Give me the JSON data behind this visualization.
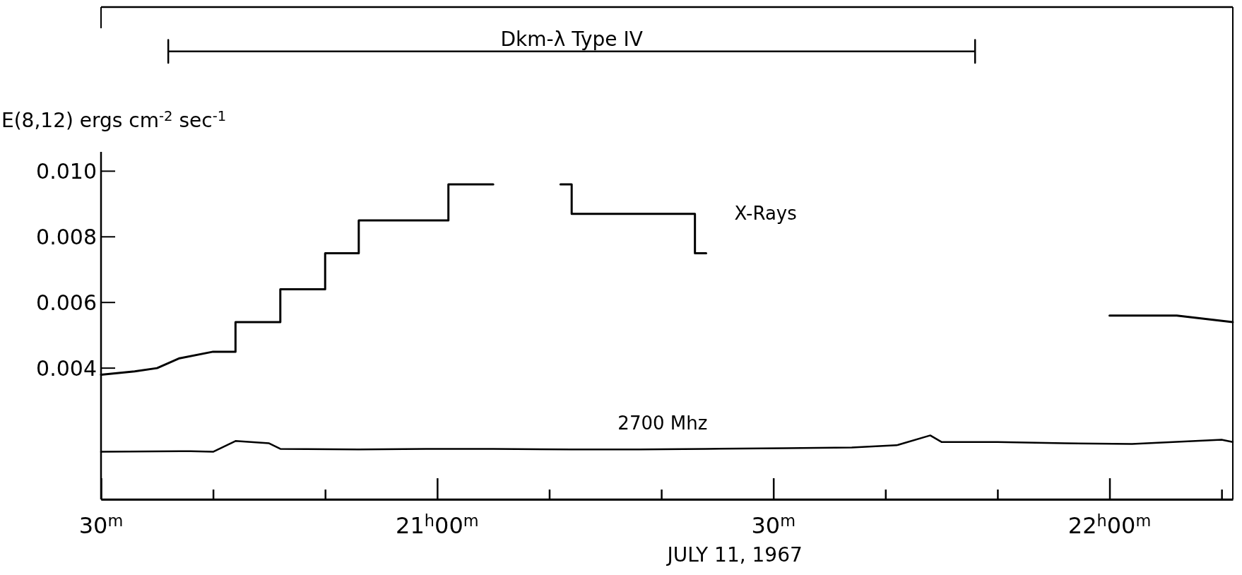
{
  "chart_data": {
    "type": "line",
    "xlabel": "JULY 11, 1967",
    "ylabel": "E(8,12) ergs cm$^{-2}$ sec$^{-1}$",
    "xlim": [
      "1967-07-11T20:30",
      "1967-07-11T22:11"
    ],
    "ylim": [
      0,
      0.015
    ],
    "xticks": [
      {
        "value": "1967-07-11T20:30",
        "label": "30$^{m}$"
      },
      {
        "value": "1967-07-11T20:40",
        "label": null
      },
      {
        "value": "1967-07-11T20:50",
        "label": null
      },
      {
        "value": "1967-07-11T21:00",
        "label": "21$^{h}$00$^{m}$"
      },
      {
        "value": "1967-07-11T21:10",
        "label": null
      },
      {
        "value": "1967-07-11T21:20",
        "label": null
      },
      {
        "value": "1967-07-11T21:30",
        "label": "30$^{m}$"
      },
      {
        "value": "1967-07-11T21:40",
        "label": null
      },
      {
        "value": "1967-07-11T21:50",
        "label": null
      },
      {
        "value": "1967-07-11T22:00",
        "label": "22$^{h}$00$^{m}$"
      },
      {
        "value": "1967-07-11T22:10",
        "label": null
      }
    ],
    "yticks": [
      {
        "value": 0.004,
        "label": "0.004"
      },
      {
        "value": 0.006,
        "label": "0.006"
      },
      {
        "value": 0.008,
        "label": "0.008"
      },
      {
        "value": 0.01,
        "label": "0.010"
      }
    ],
    "grid": false,
    "marker": "none",
    "line_style": "solid",
    "series": [
      {
        "name": "X-Rays",
        "color": "#000000",
        "x": [
          "1967-07-11T20:30",
          "1967-07-11T20:33",
          "1967-07-11T20:35",
          "1967-07-11T20:37",
          "1967-07-11T20:40",
          "1967-07-11T20:42",
          "1967-07-11T20:42",
          "1967-07-11T20:46",
          "1967-07-11T20:46",
          "1967-07-11T20:50",
          "1967-07-11T20:50",
          "1967-07-11T20:53",
          "1967-07-11T20:53",
          "1967-07-11T21:01",
          "1967-07-11T21:01",
          "1967-07-11T21:05",
          "1967-07-11T21:08",
          "1967-07-11T21:11",
          "1967-07-11T21:12",
          "1967-07-11T21:12",
          "1967-07-11T21:23",
          "1967-07-11T21:23",
          "1967-07-11T21:24",
          "1967-07-11T21:42",
          "1967-07-11T22:00",
          "1967-07-11T22:05",
          "1967-07-11T22:06",
          "1967-07-11T22:11"
        ],
        "values": [
          0.0038,
          0.0039,
          0.004,
          0.0043,
          0.0045,
          0.0045,
          0.0054,
          0.0054,
          0.0064,
          0.0064,
          0.0075,
          0.0075,
          0.0085,
          0.0085,
          0.0096,
          0.0096,
          null,
          0.0096,
          0.0096,
          0.0087,
          0.0087,
          0.0075,
          0.0075,
          null,
          0.0056,
          0.0056,
          0.0056,
          0.0054
        ]
      },
      {
        "name": "2700 Mhz",
        "color": "#000000",
        "x": [
          "1967-07-11T20:30",
          "1967-07-11T20:38",
          "1967-07-11T20:40",
          "1967-07-11T20:42",
          "1967-07-11T20:45",
          "1967-07-11T20:46",
          "1967-07-11T20:53",
          "1967-07-11T20:59",
          "1967-07-11T21:05",
          "1967-07-11T21:12",
          "1967-07-11T21:18",
          "1967-07-11T21:24",
          "1967-07-11T21:31",
          "1967-07-11T21:37",
          "1967-07-11T21:41",
          "1967-07-11T21:44",
          "1967-07-11T21:45",
          "1967-07-11T21:50",
          "1967-07-11T21:56",
          "1967-07-11T22:02",
          "1967-07-11T22:10",
          "1967-07-11T22:11"
        ],
        "values": [
          0.00145,
          0.00147,
          0.00145,
          0.00178,
          0.00171,
          0.00154,
          0.00152,
          0.00154,
          0.00154,
          0.00152,
          0.00152,
          0.00154,
          0.00156,
          0.00158,
          0.00165,
          0.00195,
          0.00175,
          0.00175,
          0.00171,
          0.00169,
          0.00182,
          0.00175
        ]
      },
      {
        "name": "Dkm-λ  Type IV",
        "color": "#000000",
        "x": [
          "1967-07-11T20:36",
          "1967-07-11T20:36",
          "1967-07-11T20:36",
          "1967-07-11T21:48",
          "1967-07-11T21:48",
          "1967-07-11T21:48"
        ],
        "values": [
          0.014,
          0.0133,
          0.01365,
          0.01365,
          0.014,
          0.0133
        ]
      }
    ]
  }
}
